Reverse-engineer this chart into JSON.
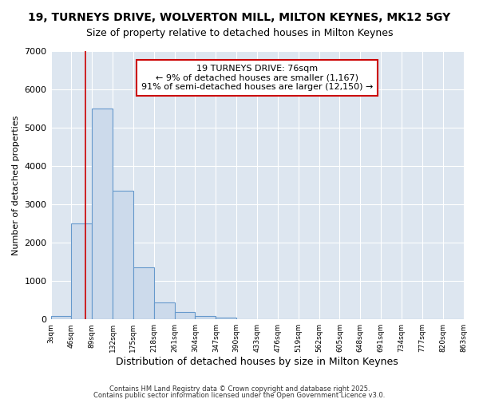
{
  "title1": "19, TURNEYS DRIVE, WOLVERTON MILL, MILTON KEYNES, MK12 5GY",
  "title2": "Size of property relative to detached houses in Milton Keynes",
  "xlabel": "Distribution of detached houses by size in Milton Keynes",
  "ylabel": "Number of detached properties",
  "bar_edges": [
    3,
    46,
    89,
    132,
    175,
    218,
    261,
    304,
    347,
    390,
    433,
    476,
    519,
    562,
    605,
    648,
    691,
    734,
    777,
    820,
    863
  ],
  "bar_heights": [
    80,
    2500,
    5500,
    3350,
    1350,
    450,
    200,
    80,
    50,
    0,
    0,
    0,
    0,
    0,
    0,
    0,
    0,
    0,
    0,
    0
  ],
  "bar_color": "#ccdaeb",
  "bar_edge_color": "#6699cc",
  "plot_bg_color": "#dde6f0",
  "fig_bg_color": "#ffffff",
  "grid_color": "#ffffff",
  "vline_x": 76,
  "vline_color": "#cc0000",
  "annotation_text": "19 TURNEYS DRIVE: 76sqm\n← 9% of detached houses are smaller (1,167)\n91% of semi-detached houses are larger (12,150) →",
  "annotation_box_facecolor": "#ffffff",
  "annotation_box_edgecolor": "#cc0000",
  "ylim": [
    0,
    7000
  ],
  "yticks": [
    0,
    1000,
    2000,
    3000,
    4000,
    5000,
    6000,
    7000
  ],
  "footer1": "Contains HM Land Registry data © Crown copyright and database right 2025.",
  "footer2": "Contains public sector information licensed under the Open Government Licence v3.0.",
  "title1_fontsize": 10,
  "title2_fontsize": 9,
  "ylabel_fontsize": 8,
  "xlabel_fontsize": 9,
  "footer_fontsize": 6,
  "annotation_fontsize": 8
}
